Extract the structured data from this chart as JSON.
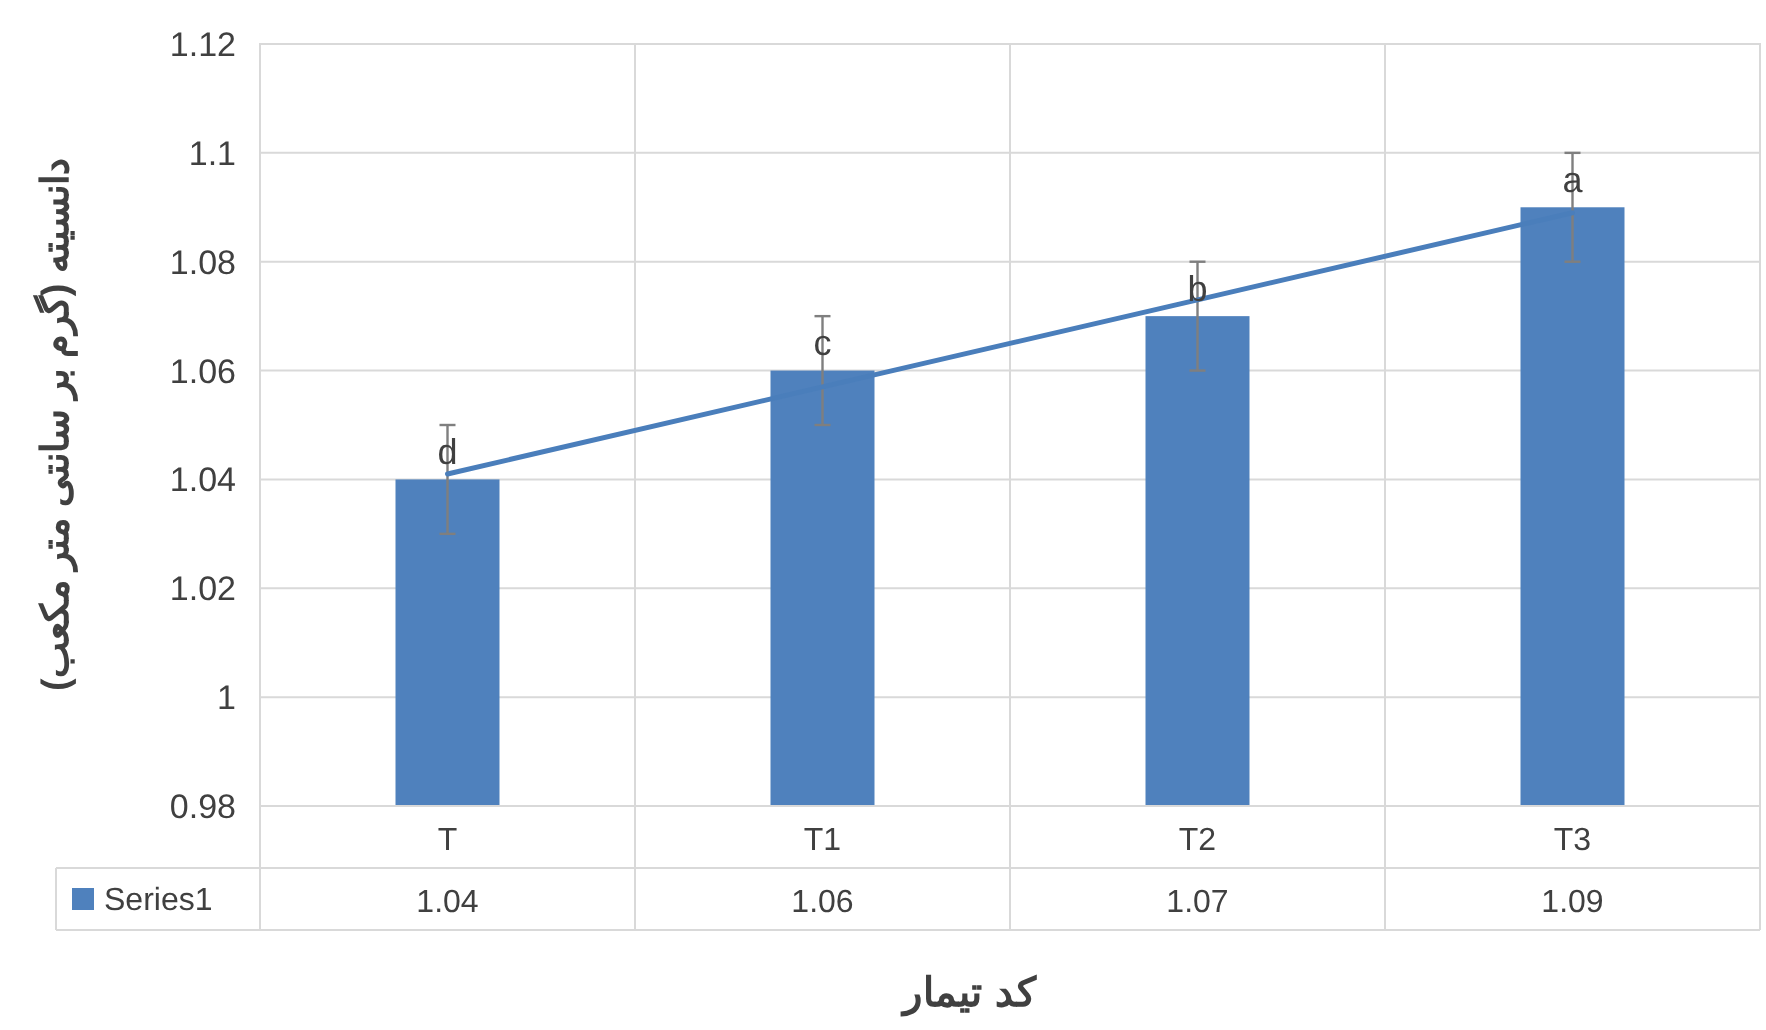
{
  "chart_data": {
    "type": "bar",
    "xlabel": "کد تیمار",
    "ylabel": "دانسیته (گرم بر سانتی متر مکعب)",
    "categories": [
      "T",
      "T1",
      "T2",
      "T3"
    ],
    "series": [
      {
        "name": "Series1",
        "color": "#4f81bd",
        "values": [
          1.04,
          1.06,
          1.07,
          1.09
        ],
        "value_labels": [
          "1.04",
          "1.06",
          "1.07",
          "1.09"
        ],
        "errors": [
          0.01,
          0.01,
          0.01,
          0.01
        ]
      },
      {
        "type": "line",
        "color": "#4a7ebb",
        "values": [
          1.041,
          1.057,
          1.073,
          1.089
        ]
      }
    ],
    "annotations": [
      {
        "text": "d",
        "x": "T",
        "y": 1.045
      },
      {
        "text": "c",
        "x": "T1",
        "y": 1.065
      },
      {
        "text": "b",
        "x": "T2",
        "y": 1.075
      },
      {
        "text": "a",
        "x": "T3",
        "y": 1.095
      }
    ],
    "ylim": [
      0.98,
      1.12
    ],
    "yticks": [
      0.98,
      1,
      1.02,
      1.04,
      1.06,
      1.08,
      1.1,
      1.12
    ],
    "grid": true,
    "legend": "bottom"
  }
}
